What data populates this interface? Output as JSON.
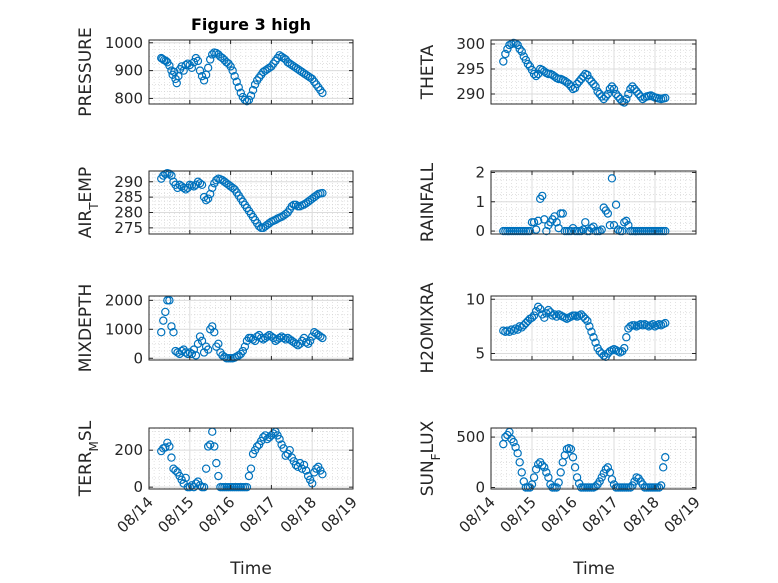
{
  "figure": {
    "title": "Figure 3 high",
    "xlabel": "Time",
    "marker_color": "#0072BD",
    "x_ticks": [
      "08/14",
      "08/15",
      "08/16",
      "08/17",
      "08/18",
      "08/19"
    ]
  },
  "chart_data": [
    {
      "type": "scatter",
      "ylabel": "PRESSURE",
      "ylim": [
        780,
        1010
      ],
      "yticks": [
        800,
        900,
        1000
      ],
      "x": [
        0.3,
        0.33,
        0.37,
        0.41,
        0.45,
        0.5,
        0.55,
        0.58,
        0.62,
        0.65,
        0.68,
        0.72,
        0.76,
        0.8,
        0.85,
        0.9,
        0.95,
        1.0,
        1.05,
        1.1,
        1.15,
        1.2,
        1.25,
        1.3,
        1.35,
        1.4,
        1.45,
        1.5,
        1.55,
        1.6,
        1.65,
        1.7,
        1.75,
        1.8,
        1.85,
        1.9,
        1.95,
        2.0,
        2.05,
        2.1,
        2.15,
        2.2,
        2.25,
        2.3,
        2.35,
        2.4,
        2.45,
        2.5,
        2.55,
        2.6,
        2.65,
        2.7,
        2.75,
        2.8,
        2.85,
        2.9,
        2.95,
        3.0,
        3.05,
        3.1,
        3.15,
        3.2,
        3.25,
        3.3,
        3.35,
        3.4,
        3.45,
        3.5,
        3.55,
        3.6,
        3.65,
        3.7,
        3.75,
        3.8,
        3.85,
        3.9,
        3.95,
        4.0,
        4.05,
        4.1,
        4.15,
        4.2,
        4.25
      ],
      "y": [
        945,
        942,
        938,
        935,
        930,
        918,
        900,
        885,
        895,
        870,
        855,
        880,
        905,
        915,
        900,
        920,
        925,
        920,
        910,
        930,
        945,
        935,
        900,
        880,
        865,
        885,
        910,
        940,
        958,
        965,
        963,
        958,
        950,
        945,
        938,
        930,
        925,
        915,
        900,
        880,
        860,
        840,
        820,
        805,
        795,
        790,
        795,
        810,
        830,
        850,
        865,
        875,
        885,
        895,
        900,
        905,
        910,
        915,
        925,
        935,
        945,
        955,
        950,
        945,
        940,
        930,
        925,
        920,
        915,
        910,
        905,
        900,
        895,
        890,
        885,
        880,
        875,
        870,
        860,
        850,
        840,
        830,
        820
      ]
    },
    {
      "type": "scatter",
      "ylabel": "THETA",
      "ylim": [
        288,
        300.8
      ],
      "yticks": [
        290,
        295,
        300
      ],
      "x": [
        0.3,
        0.35,
        0.4,
        0.45,
        0.5,
        0.55,
        0.6,
        0.65,
        0.7,
        0.75,
        0.8,
        0.85,
        0.9,
        0.95,
        1.0,
        1.05,
        1.1,
        1.15,
        1.2,
        1.25,
        1.3,
        1.35,
        1.4,
        1.45,
        1.5,
        1.55,
        1.6,
        1.65,
        1.7,
        1.75,
        1.8,
        1.85,
        1.9,
        1.95,
        2.0,
        2.05,
        2.1,
        2.15,
        2.2,
        2.25,
        2.3,
        2.35,
        2.4,
        2.45,
        2.5,
        2.55,
        2.6,
        2.65,
        2.7,
        2.75,
        2.8,
        2.85,
        2.9,
        2.95,
        3.0,
        3.05,
        3.1,
        3.15,
        3.2,
        3.25,
        3.3,
        3.35,
        3.4,
        3.45,
        3.5,
        3.55,
        3.6,
        3.65,
        3.7,
        3.75,
        3.8,
        3.85,
        3.9,
        3.95,
        4.0,
        4.05,
        4.1,
        4.15,
        4.2,
        4.25
      ],
      "y": [
        296.5,
        298,
        299,
        299.8,
        300,
        300.2,
        300.1,
        299.8,
        299,
        298.5,
        297.5,
        296.8,
        296,
        295.5,
        294.8,
        294,
        293.6,
        294,
        295,
        294.8,
        294.5,
        294.2,
        294,
        294,
        293.8,
        293.5,
        293.2,
        293,
        293,
        292.8,
        292.6,
        292.3,
        292,
        291.5,
        291,
        291.2,
        292,
        292.5,
        293,
        293.5,
        294,
        293.8,
        293,
        292.5,
        292,
        291.5,
        290.5,
        290,
        289.5,
        289,
        289.5,
        290,
        291,
        291.5,
        291,
        290,
        289.5,
        289,
        288.5,
        288.3,
        289,
        290,
        291,
        291.5,
        291,
        290.5,
        290,
        289.5,
        289,
        289.3,
        289.5,
        289.6,
        289.7,
        289.5,
        289.3,
        289.2,
        289.1,
        289,
        289.1,
        289.2
      ]
    },
    {
      "type": "scatter",
      "ylabel": "AIR_TEMP",
      "ylim": [
        273,
        293.5
      ],
      "yticks": [
        275,
        280,
        285,
        290
      ],
      "x": [
        0.3,
        0.35,
        0.4,
        0.45,
        0.5,
        0.55,
        0.6,
        0.65,
        0.7,
        0.75,
        0.8,
        0.85,
        0.9,
        0.95,
        1.0,
        1.05,
        1.1,
        1.15,
        1.2,
        1.25,
        1.3,
        1.35,
        1.4,
        1.45,
        1.5,
        1.55,
        1.6,
        1.65,
        1.7,
        1.75,
        1.8,
        1.85,
        1.9,
        1.95,
        2.0,
        2.05,
        2.1,
        2.15,
        2.2,
        2.25,
        2.3,
        2.35,
        2.4,
        2.45,
        2.5,
        2.55,
        2.6,
        2.65,
        2.7,
        2.75,
        2.8,
        2.85,
        2.9,
        2.95,
        3.0,
        3.05,
        3.1,
        3.15,
        3.2,
        3.25,
        3.3,
        3.35,
        3.4,
        3.45,
        3.5,
        3.55,
        3.6,
        3.65,
        3.7,
        3.75,
        3.8,
        3.85,
        3.9,
        3.95,
        4.0,
        4.05,
        4.1,
        4.15,
        4.2,
        4.25
      ],
      "y": [
        291,
        292,
        292.5,
        292.8,
        292.6,
        292,
        290,
        289,
        288,
        289,
        288.5,
        288,
        287.5,
        288,
        289,
        288.8,
        288.5,
        289,
        290,
        289.5,
        289,
        285,
        284,
        284.5,
        286,
        288,
        289.5,
        290.5,
        291,
        290.8,
        290.5,
        290,
        289.5,
        289,
        288.5,
        288,
        287.5,
        286.5,
        285.5,
        284.5,
        283.5,
        282.5,
        281.5,
        280.5,
        279.5,
        278.5,
        277.5,
        276.5,
        275.5,
        275,
        275,
        275.5,
        276,
        276.5,
        277,
        277.3,
        277.6,
        278,
        278.3,
        278.6,
        279,
        279.5,
        280,
        281,
        282,
        282.5,
        282.5,
        282,
        282,
        282.3,
        282.6,
        283,
        283.5,
        284,
        284.5,
        285,
        285.5,
        286,
        286.2,
        286.3
      ]
    },
    {
      "type": "scatter",
      "ylabel": "RAINFALL",
      "ylim": [
        -0.1,
        2.05
      ],
      "yticks": [
        0,
        1,
        2
      ],
      "x": [
        0.3,
        0.35,
        0.4,
        0.45,
        0.5,
        0.55,
        0.6,
        0.65,
        0.7,
        0.75,
        0.8,
        0.85,
        0.9,
        0.95,
        1.0,
        1.05,
        1.1,
        1.15,
        1.2,
        1.25,
        1.3,
        1.35,
        1.4,
        1.45,
        1.5,
        1.55,
        1.6,
        1.65,
        1.7,
        1.75,
        1.8,
        1.85,
        1.9,
        1.95,
        2.0,
        2.05,
        2.1,
        2.15,
        2.2,
        2.25,
        2.3,
        2.35,
        2.4,
        2.45,
        2.5,
        2.55,
        2.6,
        2.65,
        2.7,
        2.75,
        2.8,
        2.85,
        2.9,
        2.95,
        3.0,
        3.05,
        3.1,
        3.15,
        3.2,
        3.25,
        3.3,
        3.35,
        3.4,
        3.45,
        3.5,
        3.55,
        3.6,
        3.65,
        3.7,
        3.75,
        3.8,
        3.85,
        3.9,
        3.95,
        4.0,
        4.05,
        4.1,
        4.15,
        4.2,
        4.25
      ],
      "y": [
        0,
        0,
        0,
        0,
        0,
        0,
        0,
        0,
        0,
        0,
        0,
        0,
        0,
        0,
        0.3,
        0.3,
        0.05,
        0.35,
        1.1,
        1.2,
        0.4,
        0,
        0.2,
        0.3,
        0.4,
        0.5,
        0.3,
        0.1,
        0.6,
        0.6,
        0,
        0,
        0,
        0,
        0.1,
        0,
        0,
        0,
        0,
        0.05,
        0.3,
        0,
        0,
        0.1,
        0.15,
        0,
        0,
        0,
        0.05,
        0.8,
        0.7,
        0.6,
        0.2,
        1.8,
        0.2,
        0.9,
        0.05,
        0,
        0,
        0.3,
        0.35,
        0.2,
        0,
        0,
        0,
        0,
        0,
        0,
        0,
        0,
        0,
        0,
        0,
        0,
        0,
        0,
        0,
        0,
        0,
        0
      ]
    },
    {
      "type": "scatter",
      "ylabel": "MIXDEPTH",
      "ylim": [
        -60,
        2150
      ],
      "yticks": [
        0,
        1000,
        2000
      ],
      "x": [
        0.3,
        0.35,
        0.4,
        0.45,
        0.5,
        0.55,
        0.6,
        0.65,
        0.7,
        0.75,
        0.8,
        0.85,
        0.9,
        0.95,
        1.0,
        1.05,
        1.1,
        1.15,
        1.2,
        1.25,
        1.3,
        1.35,
        1.4,
        1.45,
        1.5,
        1.55,
        1.6,
        1.65,
        1.7,
        1.75,
        1.8,
        1.85,
        1.9,
        1.95,
        2.0,
        2.05,
        2.1,
        2.15,
        2.2,
        2.25,
        2.3,
        2.35,
        2.4,
        2.45,
        2.5,
        2.55,
        2.6,
        2.65,
        2.7,
        2.75,
        2.8,
        2.85,
        2.9,
        2.95,
        3.0,
        3.05,
        3.1,
        3.15,
        3.2,
        3.25,
        3.3,
        3.35,
        3.4,
        3.45,
        3.5,
        3.55,
        3.6,
        3.65,
        3.7,
        3.75,
        3.8,
        3.85,
        3.9,
        3.95,
        4.0,
        4.05,
        4.1,
        4.15,
        4.2,
        4.25
      ],
      "y": [
        900,
        1300,
        1600,
        2000,
        2000,
        1100,
        900,
        250,
        200,
        150,
        250,
        300,
        200,
        150,
        200,
        150,
        300,
        100,
        500,
        750,
        600,
        200,
        400,
        300,
        1000,
        1100,
        900,
        400,
        500,
        200,
        100,
        50,
        0,
        0,
        0,
        0,
        20,
        60,
        100,
        150,
        250,
        400,
        600,
        700,
        700,
        650,
        600,
        750,
        800,
        700,
        650,
        700,
        750,
        800,
        750,
        700,
        600,
        650,
        700,
        750,
        700,
        650,
        700,
        650,
        600,
        550,
        500,
        450,
        500,
        600,
        700,
        550,
        500,
        600,
        750,
        900,
        850,
        800,
        750,
        700
      ]
    },
    {
      "type": "scatter",
      "ylabel": "H2OMIXRA",
      "ylim": [
        4.4,
        10.3
      ],
      "yticks": [
        5,
        10
      ],
      "x": [
        0.3,
        0.35,
        0.4,
        0.45,
        0.5,
        0.55,
        0.6,
        0.65,
        0.7,
        0.75,
        0.8,
        0.85,
        0.9,
        0.95,
        1.0,
        1.05,
        1.1,
        1.15,
        1.2,
        1.25,
        1.3,
        1.35,
        1.4,
        1.45,
        1.5,
        1.55,
        1.6,
        1.65,
        1.7,
        1.75,
        1.8,
        1.85,
        1.9,
        1.95,
        2.0,
        2.05,
        2.1,
        2.15,
        2.2,
        2.25,
        2.3,
        2.35,
        2.4,
        2.45,
        2.5,
        2.55,
        2.6,
        2.65,
        2.7,
        2.75,
        2.8,
        2.85,
        2.9,
        2.95,
        3.0,
        3.05,
        3.1,
        3.15,
        3.2,
        3.25,
        3.3,
        3.35,
        3.4,
        3.45,
        3.5,
        3.55,
        3.6,
        3.65,
        3.7,
        3.75,
        3.8,
        3.85,
        3.9,
        3.95,
        4.0,
        4.05,
        4.1,
        4.15,
        4.2,
        4.25
      ],
      "y": [
        7.1,
        7.0,
        7.1,
        7.0,
        7.2,
        7.1,
        7.3,
        7.2,
        7.5,
        7.4,
        7.6,
        7.8,
        8.0,
        8.2,
        8.3,
        8.5,
        8.9,
        9.3,
        9.1,
        8.6,
        8.3,
        8.7,
        9.0,
        8.8,
        8.5,
        8.6,
        8.4,
        8.6,
        8.5,
        8.4,
        8.3,
        8.2,
        8.3,
        8.4,
        8.5,
        8.5,
        8.4,
        8.5,
        8.6,
        8.4,
        8.2,
        8.0,
        7.5,
        7.0,
        6.5,
        6.0,
        5.5,
        5.2,
        5.0,
        4.8,
        4.7,
        5.0,
        5.2,
        5.3,
        5.4,
        5.3,
        5.2,
        5.1,
        5.2,
        5.5,
        6.5,
        7.3,
        7.5,
        7.6,
        7.6,
        7.5,
        7.6,
        7.7,
        7.6,
        7.7,
        7.6,
        7.5,
        7.6,
        7.7,
        7.5,
        7.6,
        7.7,
        7.6,
        7.7,
        7.8
      ]
    },
    {
      "type": "scatter",
      "ylabel": "TERR_MSL",
      "ylim": [
        -10,
        320
      ],
      "yticks": [
        0,
        200
      ],
      "x": [
        0.3,
        0.35,
        0.4,
        0.45,
        0.5,
        0.55,
        0.6,
        0.65,
        0.7,
        0.75,
        0.8,
        0.85,
        0.9,
        0.95,
        1.0,
        1.05,
        1.1,
        1.15,
        1.2,
        1.25,
        1.3,
        1.35,
        1.4,
        1.45,
        1.5,
        1.55,
        1.6,
        1.65,
        1.7,
        1.75,
        1.8,
        1.85,
        1.9,
        1.95,
        2.0,
        2.05,
        2.1,
        2.15,
        2.2,
        2.25,
        2.3,
        2.35,
        2.4,
        2.45,
        2.5,
        2.55,
        2.6,
        2.65,
        2.7,
        2.75,
        2.8,
        2.85,
        2.9,
        2.95,
        3.0,
        3.05,
        3.1,
        3.15,
        3.2,
        3.25,
        3.3,
        3.35,
        3.4,
        3.45,
        3.5,
        3.55,
        3.6,
        3.65,
        3.7,
        3.75,
        3.8,
        3.85,
        3.9,
        3.95,
        4.0,
        4.05,
        4.1,
        4.15,
        4.2,
        4.25
      ],
      "y": [
        195,
        210,
        215,
        240,
        220,
        160,
        100,
        90,
        80,
        60,
        40,
        20,
        50,
        0,
        0,
        10,
        0,
        20,
        30,
        10,
        0,
        0,
        100,
        220,
        230,
        300,
        220,
        130,
        60,
        0,
        0,
        0,
        0,
        0,
        0,
        0,
        0,
        0,
        0,
        0,
        0,
        0,
        0,
        60,
        100,
        180,
        200,
        220,
        230,
        250,
        270,
        280,
        260,
        270,
        280,
        290,
        300,
        280,
        260,
        230,
        210,
        170,
        180,
        200,
        160,
        140,
        120,
        110,
        130,
        100,
        120,
        90,
        60,
        40,
        20,
        80,
        100,
        110,
        90,
        70
      ]
    },
    {
      "type": "scatter",
      "ylabel": "SUN_FLUX",
      "ylim": [
        -15,
        590
      ],
      "yticks": [
        0,
        500
      ],
      "x": [
        0.3,
        0.35,
        0.4,
        0.45,
        0.5,
        0.55,
        0.6,
        0.65,
        0.7,
        0.75,
        0.8,
        0.85,
        0.9,
        0.95,
        1.0,
        1.05,
        1.1,
        1.15,
        1.2,
        1.25,
        1.3,
        1.35,
        1.4,
        1.45,
        1.5,
        1.55,
        1.6,
        1.65,
        1.7,
        1.75,
        1.8,
        1.85,
        1.9,
        1.95,
        2.0,
        2.05,
        2.1,
        2.15,
        2.2,
        2.25,
        2.3,
        2.35,
        2.4,
        2.45,
        2.5,
        2.55,
        2.6,
        2.65,
        2.7,
        2.75,
        2.8,
        2.85,
        2.9,
        2.95,
        3.0,
        3.05,
        3.1,
        3.15,
        3.2,
        3.25,
        3.3,
        3.35,
        3.4,
        3.45,
        3.5,
        3.55,
        3.6,
        3.65,
        3.7,
        3.75,
        3.8,
        3.85,
        3.9,
        3.95,
        4.0,
        4.05,
        4.1,
        4.15,
        4.2,
        4.25
      ],
      "y": [
        430,
        500,
        520,
        550,
        480,
        450,
        400,
        340,
        250,
        150,
        60,
        0,
        0,
        0,
        30,
        100,
        180,
        230,
        250,
        220,
        200,
        150,
        100,
        30,
        0,
        0,
        0,
        50,
        150,
        250,
        320,
        380,
        390,
        380,
        300,
        200,
        100,
        40,
        0,
        0,
        0,
        0,
        0,
        0,
        0,
        10,
        30,
        60,
        100,
        140,
        180,
        200,
        150,
        80,
        30,
        0,
        0,
        0,
        0,
        0,
        0,
        0,
        0,
        20,
        60,
        100,
        90,
        60,
        30,
        0,
        0,
        0,
        0,
        0,
        0,
        0,
        0,
        20,
        200,
        300
      ]
    }
  ]
}
